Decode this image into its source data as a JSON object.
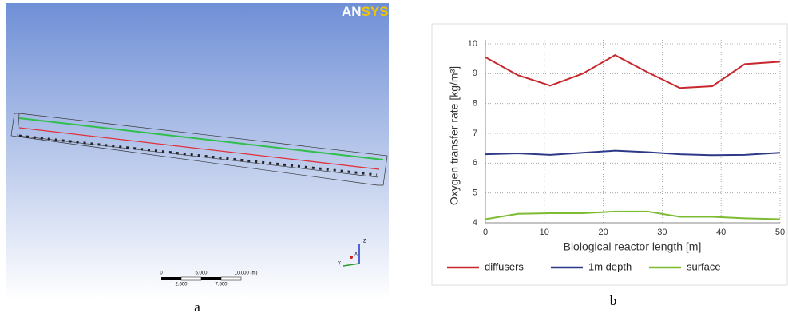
{
  "figure": {
    "logo_an": "AN",
    "logo_sys": "SYS",
    "scale_labels": [
      "0",
      "5.000",
      "10.000 (m)",
      "2.500",
      "7.500"
    ],
    "triad": [
      "Z",
      "X",
      "Y"
    ],
    "label_a": "a",
    "label_b": "b"
  },
  "chart_data": {
    "type": "line",
    "x_label": "Biological reactor length [m]",
    "y_label": "Oxygen transfer rate [kg/m³]",
    "x": [
      0,
      5.5,
      11,
      16.5,
      22,
      27.5,
      33,
      38.5,
      44,
      50
    ],
    "series": [
      {
        "name": "diffusers",
        "color": "#c8282d",
        "values": [
          9.55,
          8.95,
          8.6,
          9.0,
          9.62,
          9.05,
          8.52,
          8.58,
          9.32,
          9.4
        ]
      },
      {
        "name": "1m depth",
        "color": "#2e3a87",
        "values": [
          6.3,
          6.33,
          6.28,
          6.35,
          6.42,
          6.37,
          6.3,
          6.27,
          6.28,
          6.35
        ]
      },
      {
        "name": "surface",
        "color": "#7dbb32",
        "values": [
          4.12,
          4.3,
          4.32,
          4.32,
          4.38,
          4.38,
          4.2,
          4.2,
          4.15,
          4.12
        ]
      }
    ],
    "xlim": [
      0,
      50
    ],
    "xticks": [
      0,
      10,
      20,
      30,
      40,
      50
    ],
    "ylim": [
      4,
      10
    ],
    "yticks": [
      4,
      5,
      6,
      7,
      8,
      9,
      10
    ],
    "grid": true,
    "legend": "bottom"
  }
}
